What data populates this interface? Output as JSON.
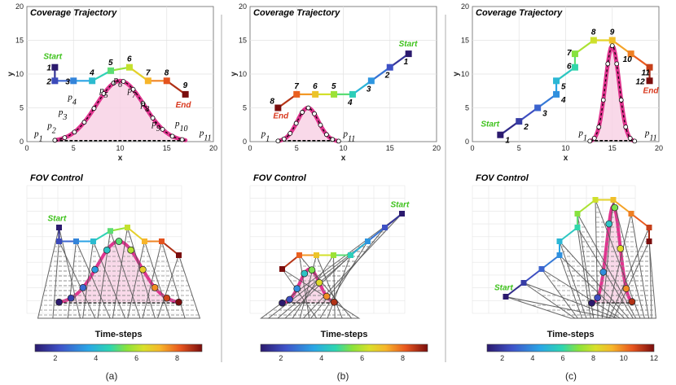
{
  "colors": {
    "path_magenta": "#e0358f",
    "fill_pink": "#f7cfe4",
    "start_green": "#3ec21c",
    "end_red": "#d9381e",
    "frame_grey": "#777777"
  },
  "chart_data": [
    {
      "type": "line",
      "caption": "(a)",
      "title": "Coverage Trajectory",
      "xlabel": "x",
      "ylabel": "y",
      "xlim": [
        0,
        20
      ],
      "ylim": [
        0,
        20
      ],
      "xticks": [
        "0",
        "5",
        "10",
        "15",
        "20"
      ],
      "yticks": [
        "0",
        "5",
        "10",
        "15",
        "20"
      ],
      "start_label": "Start",
      "end_label": "End",
      "trajectory": {
        "x": [
          3,
          3,
          5,
          7,
          9,
          11,
          13,
          15,
          17
        ],
        "y": [
          11,
          9,
          9,
          9,
          10.5,
          11,
          9,
          9,
          7
        ],
        "labels": [
          "1",
          "2",
          "3",
          "4",
          "5",
          "6",
          "7",
          "8",
          "9"
        ]
      },
      "target_labels": [
        {
          "n": "p",
          "s": "1",
          "x": 0.8,
          "y": 0.8
        },
        {
          "n": "p",
          "s": "2",
          "x": 2.2,
          "y": 2.0
        },
        {
          "n": "p",
          "s": "3",
          "x": 3.4,
          "y": 4.0
        },
        {
          "n": "p",
          "s": "4",
          "x": 4.4,
          "y": 6.2
        },
        {
          "n": "p",
          "s": "5",
          "x": 7.8,
          "y": 7.2
        },
        {
          "n": "p",
          "s": "6",
          "x": 9.3,
          "y": 8.8
        },
        {
          "n": "p",
          "s": "7",
          "x": 10.8,
          "y": 7.2
        },
        {
          "n": "p",
          "s": "8",
          "x": 12.2,
          "y": 5.2
        },
        {
          "n": "p",
          "s": "9",
          "x": 13.4,
          "y": 2.3
        },
        {
          "n": "p",
          "s": "10",
          "x": 15.9,
          "y": 2.3
        },
        {
          "n": "p",
          "s": "11",
          "x": 18.5,
          "y": 0.9
        }
      ],
      "fov_title": "FOV Control",
      "colorbar": {
        "title": "Time-steps",
        "ticks": [
          "2",
          "4",
          "6",
          "8"
        ]
      }
    },
    {
      "type": "line",
      "caption": "(b)",
      "title": "Coverage Trajectory",
      "xlabel": "x",
      "ylabel": "y",
      "xlim": [
        0,
        20
      ],
      "ylim": [
        0,
        20
      ],
      "xticks": [
        "0",
        "5",
        "10",
        "15",
        "20"
      ],
      "yticks": [
        "0",
        "5",
        "10",
        "15",
        "20"
      ],
      "start_label": "Start",
      "end_label": "End",
      "trajectory": {
        "x": [
          17,
          15,
          13,
          11,
          9,
          7,
          5,
          3
        ],
        "y": [
          13,
          11,
          9,
          7,
          7,
          7,
          7,
          5
        ],
        "labels": [
          "1",
          "2",
          "3",
          "4",
          "5",
          "6",
          "7",
          "8"
        ]
      },
      "target_labels": [
        {
          "n": "p",
          "s": "1",
          "x": 1.2,
          "y": 0.8
        },
        {
          "n": "p",
          "s": "11",
          "x": 10.0,
          "y": 0.8
        }
      ],
      "fov_title": "FOV Control",
      "colorbar": {
        "title": "Time-steps",
        "ticks": [
          "2",
          "4",
          "6",
          "8"
        ]
      }
    },
    {
      "type": "line",
      "caption": "(c)",
      "title": "Coverage Trajectory",
      "xlabel": "x",
      "ylabel": "y",
      "xlim": [
        0,
        20
      ],
      "ylim": [
        0,
        20
      ],
      "xticks": [
        "0",
        "5",
        "10",
        "15",
        "20"
      ],
      "yticks": [
        "0",
        "5",
        "10",
        "15",
        "20"
      ],
      "start_label": "Start",
      "end_label": "End",
      "trajectory": {
        "x": [
          3,
          5,
          7,
          9,
          9,
          11,
          11,
          13,
          15,
          17,
          19,
          19
        ],
        "y": [
          1,
          3,
          5,
          7,
          9,
          11,
          13,
          15,
          15,
          13,
          11,
          9
        ],
        "labels": [
          "1",
          "2",
          "3",
          "4",
          "5",
          "6",
          "7",
          "8",
          "9",
          "10",
          "11",
          "12"
        ]
      },
      "target_labels": [
        {
          "n": "p",
          "s": "1",
          "x": 11.4,
          "y": 0.9
        },
        {
          "n": "p",
          "s": "11",
          "x": 18.5,
          "y": 0.9
        }
      ],
      "fov_title": "FOV Control",
      "colorbar": {
        "title": "Time-steps",
        "ticks": [
          "2",
          "4",
          "6",
          "8",
          "10",
          "12"
        ]
      }
    }
  ]
}
